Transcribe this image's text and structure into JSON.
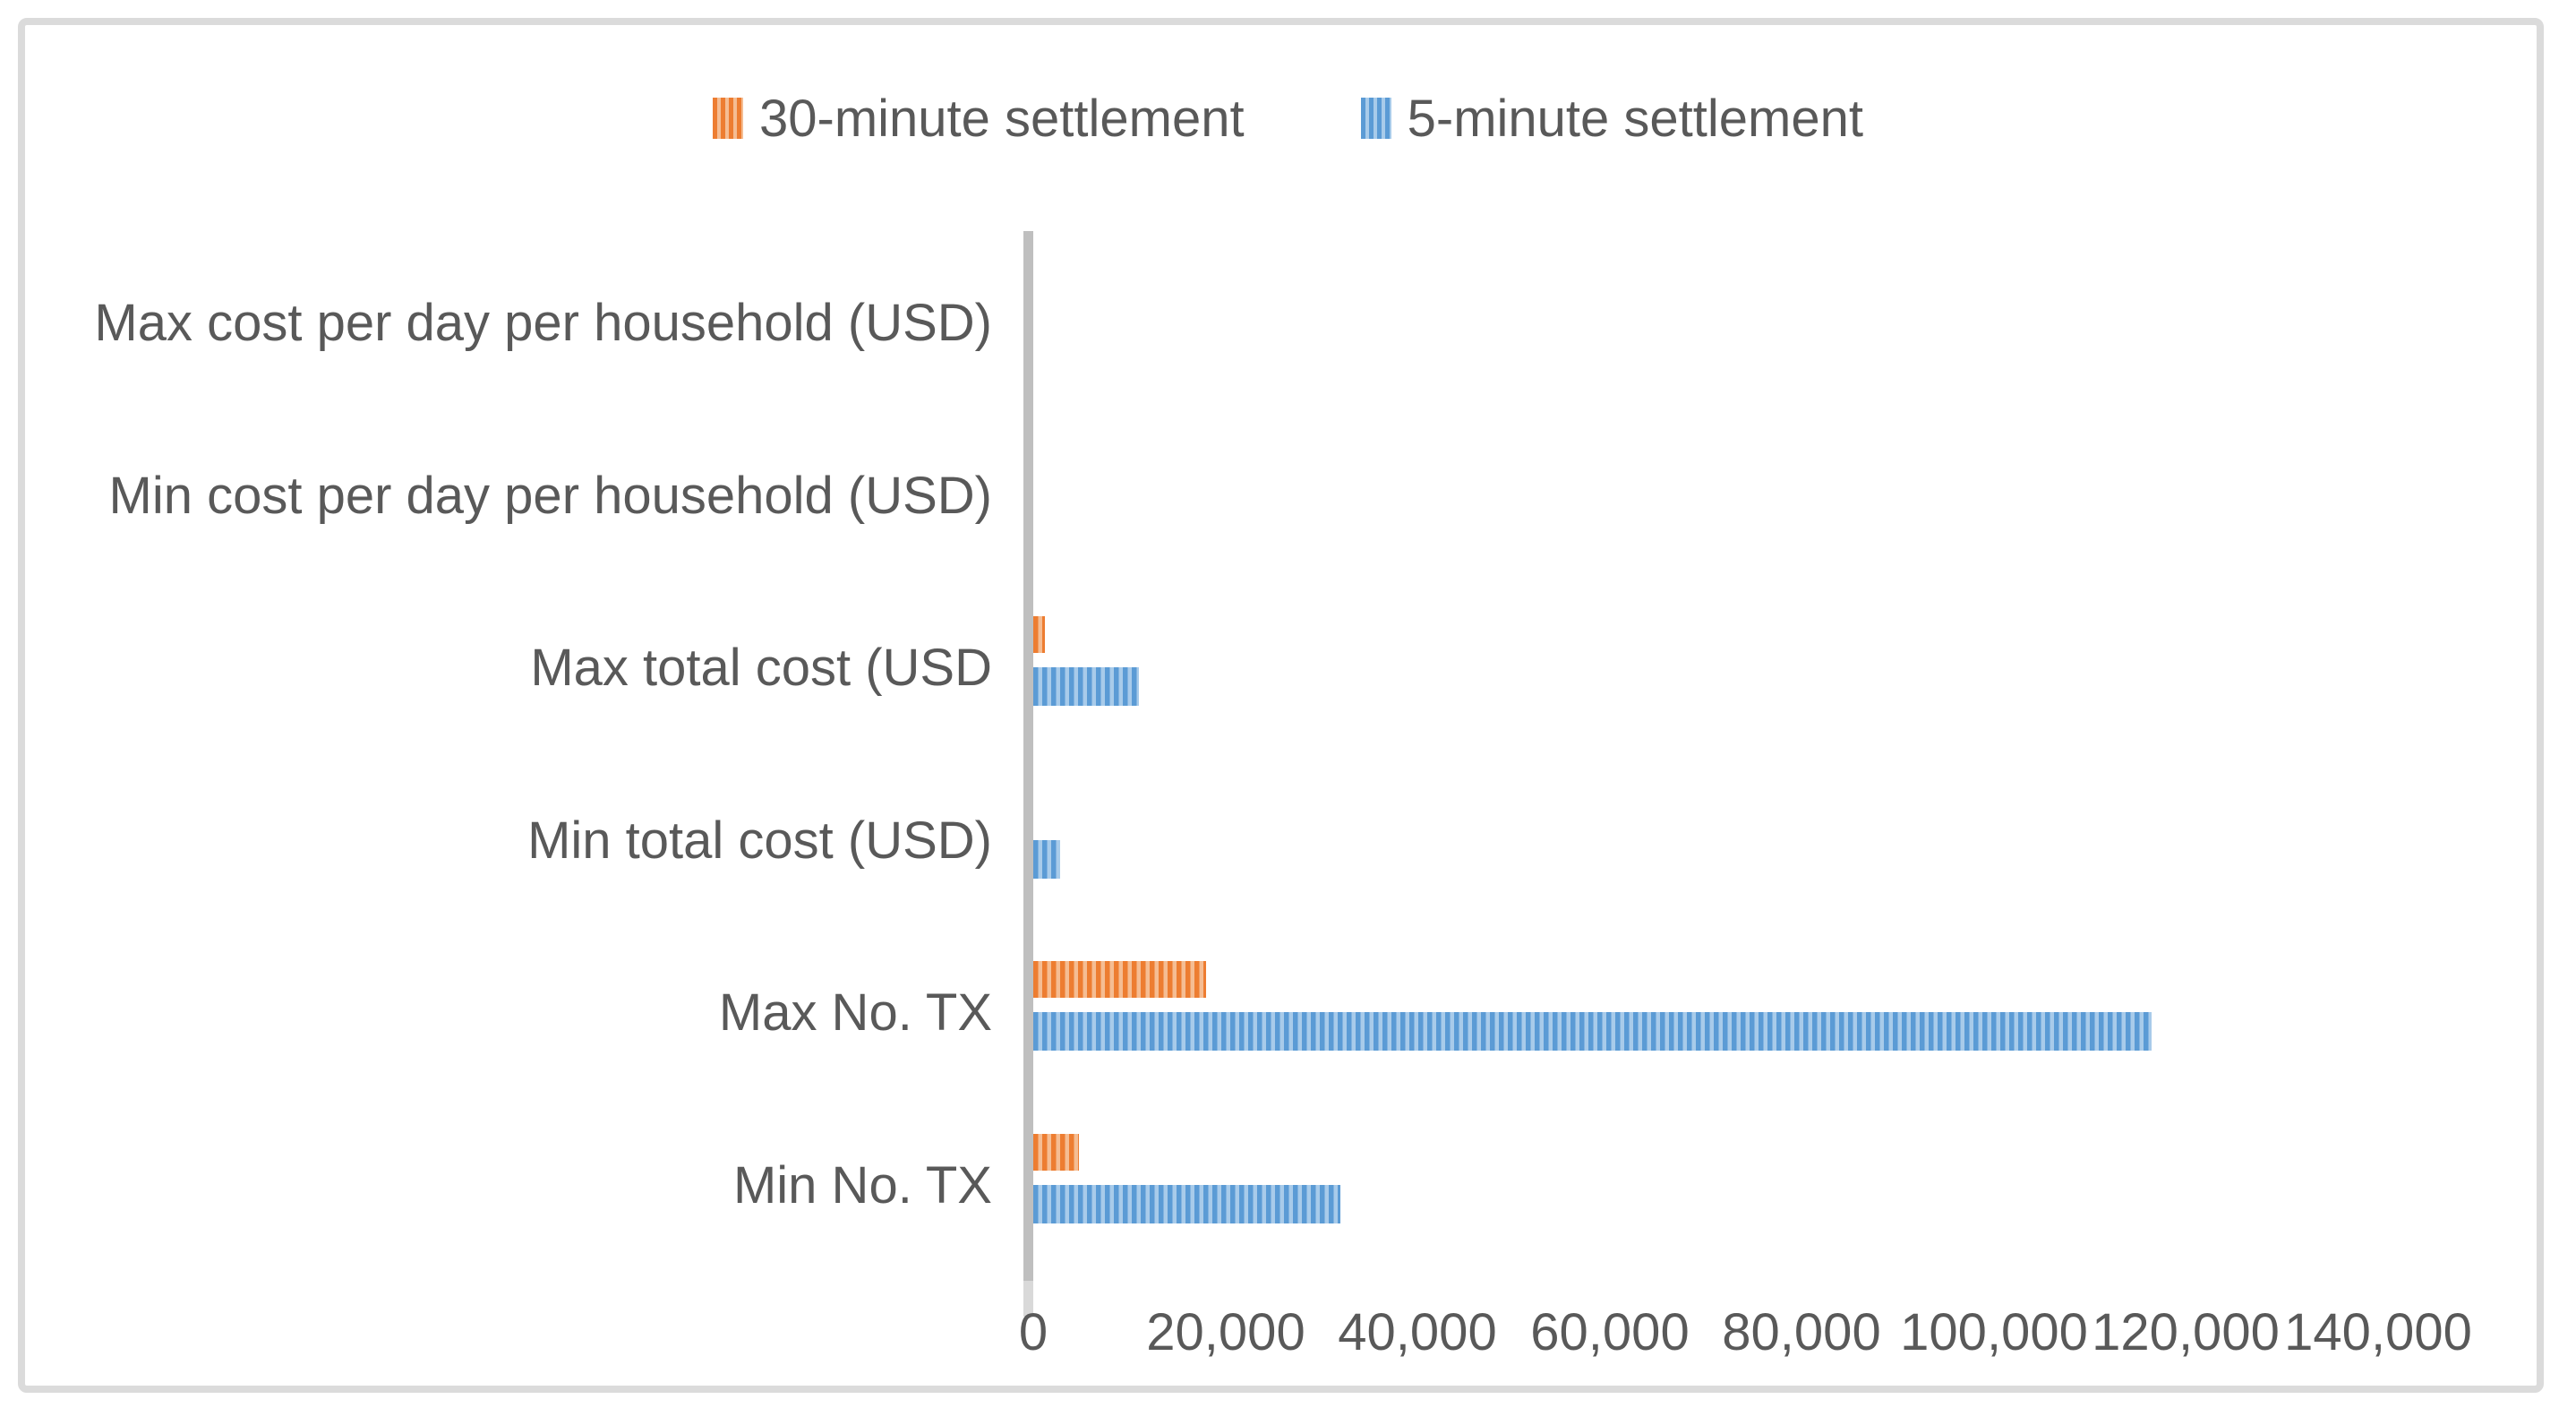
{
  "chart_data": {
    "type": "bar",
    "orientation": "horizontal",
    "title": "",
    "xlabel": "",
    "ylabel": "",
    "categories": [
      "Max cost per day per household (USD)",
      "Min cost per day per household (USD)",
      "Max total cost (USD",
      "Min total cost (USD)",
      "Max No. TX",
      "Min No. TX"
    ],
    "series": [
      {
        "name": "30-minute settlement",
        "color": "#ED7D31",
        "pattern": "vertical-stripes",
        "values": [
          0,
          0,
          1200,
          0,
          18000,
          4800
        ]
      },
      {
        "name": "5-minute settlement",
        "color": "#5B9BD5",
        "pattern": "vertical-stripes",
        "values": [
          0,
          0,
          11000,
          2800,
          116500,
          32000
        ]
      }
    ],
    "xlim": [
      0,
      140000
    ],
    "x_ticks": [
      0,
      20000,
      40000,
      60000,
      80000,
      100000,
      120000,
      140000
    ],
    "x_tick_labels": [
      "0",
      "20,000",
      "40,000",
      "60,000",
      "80,000",
      "100,000",
      "120,000",
      "140,000"
    ],
    "legend_position": "top-center",
    "grid": false,
    "axis_line_color": "#BFBFBF",
    "text_color": "#595959"
  }
}
